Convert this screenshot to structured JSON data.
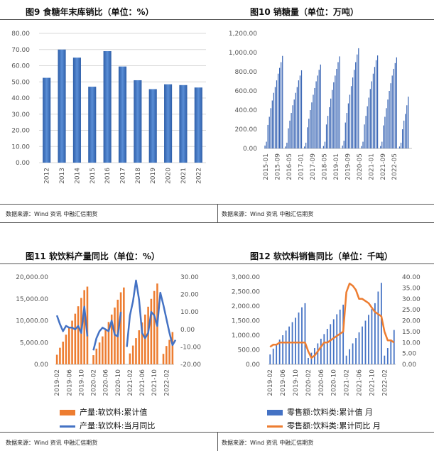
{
  "chart_data": [
    {
      "type": "bar",
      "title": "图9 食糖年末库销比（单位：%）",
      "categories": [
        "2012",
        "2013",
        "2014",
        "2015",
        "2016",
        "2017",
        "2018",
        "2019",
        "2020",
        "2021",
        "2022"
      ],
      "values": [
        52.5,
        70,
        65,
        47,
        69,
        59.5,
        51,
        45.5,
        48.5,
        48,
        46.5
      ],
      "yticks": [
        "80.00",
        "70.00",
        "60.00",
        "50.00",
        "40.00",
        "30.00",
        "20.00",
        "10.00",
        "0.00"
      ],
      "ylim": [
        0,
        80
      ],
      "source": "数据来源：Wind 资讯 中融汇信期货"
    },
    {
      "type": "bar",
      "title": "图10 销糖量（单位：万吨）",
      "xticks": [
        "2015-01",
        "2015-09",
        "2016-05",
        "2017-01",
        "2017-09",
        "2018-05",
        "2019-01",
        "2019-09",
        "2020-05",
        "2021-01",
        "2021-09",
        "2022-05"
      ],
      "yticks": [
        "1,200.00",
        "1,000.00",
        "800.00",
        "600.00",
        "400.00",
        "200.00",
        "0.00"
      ],
      "ylim": [
        0,
        1200
      ],
      "seasons": [
        {
          "start_index": 0,
          "values": [
            30,
            70,
            245,
            330,
            420,
            500,
            580,
            640,
            710,
            780,
            840,
            900,
            965
          ]
        },
        {
          "start_index": 14,
          "values": [
            20,
            60,
            210,
            290,
            370,
            450,
            510,
            580,
            640,
            710,
            760,
            815
          ]
        },
        {
          "start_index": 27,
          "values": [
            20,
            60,
            220,
            310,
            400,
            480,
            560,
            630,
            700,
            760,
            820,
            875
          ]
        },
        {
          "start_index": 40,
          "values": [
            25,
            70,
            250,
            340,
            430,
            520,
            610,
            690,
            760,
            830,
            900,
            960
          ]
        },
        {
          "start_index": 53,
          "values": [
            30,
            80,
            270,
            370,
            470,
            560,
            650,
            740,
            820,
            900,
            980,
            1045
          ]
        },
        {
          "start_index": 66,
          "values": [
            25,
            70,
            250,
            340,
            440,
            530,
            620,
            700,
            780,
            850,
            920,
            970
          ]
        },
        {
          "start_index": 79,
          "values": [
            25,
            70,
            240,
            330,
            420,
            510,
            600,
            680,
            760,
            830,
            890,
            950
          ]
        },
        {
          "start_index": 92,
          "values": [
            20,
            60,
            200,
            290,
            360,
            450,
            540
          ]
        }
      ],
      "source": "数据来源：Wind 资讯 中融汇信期货"
    },
    {
      "type": "bar+line",
      "title": "图11 软饮料产量同比（单位：%）",
      "xticks": [
        "2019-02",
        "2019-06",
        "2019-10",
        "2020-02",
        "2020-06",
        "2020-10",
        "2021-02",
        "2021-06",
        "2021-10",
        "2022-02"
      ],
      "yticks_left": [
        "20,000.00",
        "15,000.00",
        "10,000.00",
        "5,000.00",
        "0.00"
      ],
      "yticks_right": [
        "30.00",
        "20.00",
        "10.00",
        "0.00",
        "-10.00",
        "-20.00"
      ],
      "ylim_left": [
        0,
        20000
      ],
      "ylim_right": [
        -20,
        30
      ],
      "series": [
        {
          "name": "产量:软饮料:累计值",
          "color": "#ED7D31",
          "values": [
            2200,
            3800,
            5200,
            6800,
            8400,
            10000,
            11600,
            13300,
            15200,
            17000,
            17800,
            null,
            2100,
            3600,
            5000,
            6400,
            8000,
            9700,
            11400,
            13000,
            14800,
            16500,
            17600,
            null,
            2500,
            4300,
            6000,
            7800,
            9600,
            11400,
            13200,
            15000,
            16800,
            18500,
            null,
            2400,
            4200,
            5600,
            7400
          ]
        },
        {
          "name": "产量:软饮料:当月同比",
          "color": "#4472C4",
          "values": [
            8,
            3,
            -1,
            2,
            1,
            1,
            0,
            2,
            -2,
            13,
            -4,
            null,
            -12,
            -5,
            -1,
            1,
            0,
            -1,
            5,
            -3,
            -4,
            10,
            null,
            -10,
            8,
            16,
            28,
            17,
            -2,
            -5,
            -2,
            10,
            8,
            2,
            21,
            14,
            6,
            -2,
            -9,
            -6
          ]
        }
      ],
      "source": "数据来源：Wind 资讯 中融汇信期货"
    },
    {
      "type": "bar+line",
      "title": "图12 软饮料销售同比（单位：千吨）",
      "xticks": [
        "2019-02",
        "2019-06",
        "2019-10",
        "2020-02",
        "2020-06",
        "2020-10",
        "2021-02",
        "2021-06",
        "2021-10",
        "2022-02"
      ],
      "yticks_left": [
        "3,000.00",
        "2,500.00",
        "2,000.00",
        "1,500.00",
        "1,000.00",
        "500.00",
        "0.00"
      ],
      "yticks_right": [
        "40.00",
        "35.00",
        "30.00",
        "25.00",
        "20.00",
        "15.00",
        "10.00",
        "5.00",
        "0.00"
      ],
      "ylim_left": [
        0,
        3000
      ],
      "ylim_right": [
        0,
        40
      ],
      "series": [
        {
          "name": "零售额:饮料类:累计值 月",
          "color": "#4472C4",
          "values": [
            340,
            540,
            700,
            850,
            1000,
            1160,
            1300,
            1450,
            1600,
            1780,
            1960,
            2100,
            220,
            400,
            560,
            720,
            880,
            1040,
            1220,
            1380,
            1550,
            1720,
            1880,
            2050,
            300,
            520,
            720,
            900,
            1100,
            1300,
            1500,
            1700,
            1900,
            2100,
            2500,
            2800,
            300,
            560,
            820,
            1180
          ]
        },
        {
          "name": "零售额:饮料类:累计同比 月",
          "color": "#ED7D31",
          "values": [
            8,
            9,
            9,
            10,
            10,
            10,
            10,
            10,
            10,
            10,
            10,
            10,
            6,
            3,
            4,
            6,
            8,
            10,
            10,
            11,
            12,
            13,
            14,
            15,
            33,
            37,
            36,
            34,
            30,
            30,
            29,
            28,
            26,
            24,
            23,
            22,
            15,
            11,
            11,
            10
          ]
        }
      ],
      "source": "数据来源：Wind 资讯 中融汇信期货"
    }
  ]
}
